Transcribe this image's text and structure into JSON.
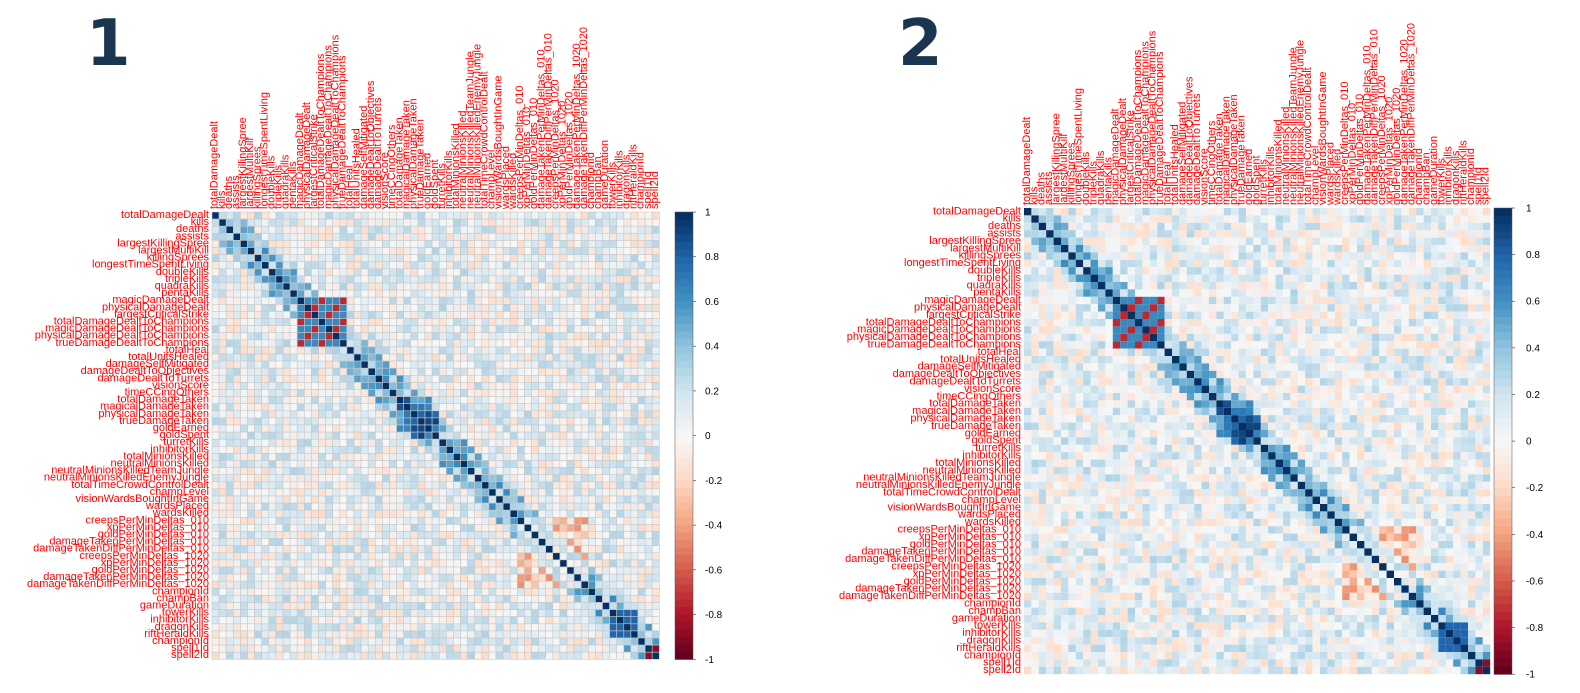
{
  "panels": [
    {
      "number": "1"
    },
    {
      "number": "2"
    }
  ],
  "chart_data": [
    {
      "type": "heatmap",
      "title": "",
      "style": "grid",
      "variables": [
        "totalDamageDealt",
        "kills",
        "deaths",
        "assists",
        "largestKillingSpree",
        "largestMultiKill",
        "killingSprees",
        "longestTimeSpentLiving",
        "doubleKills",
        "tripleKills",
        "quadraKills",
        "pentaKills",
        "magicDamageDealt",
        "physicalDamageDealt",
        "largestCriticalStrike",
        "totalDamageDealtToChampions",
        "magicDamageDealtToChampions",
        "physicalDamageDealtToChampions",
        "trueDamageDealtToChampions",
        "totalHeal",
        "totalUnitsHealed",
        "damageSelfMitigated",
        "damageDealtToObjectives",
        "damageDealtToTurrets",
        "visionScore",
        "timeCCingOthers",
        "totalDamageTaken",
        "magicalDamageTaken",
        "physicalDamageTaken",
        "trueDamageTaken",
        "goldEarned",
        "goldSpent",
        "turretKills",
        "inhibitorKills",
        "totalMinionsKilled",
        "neutralMinionsKilled",
        "neutralMinionsKilledTeamJungle",
        "neutralMinionsKilledEnemyJungle",
        "totalTimeCrowdControlDealt",
        "champLevel",
        "visionWardsBoughtInGame",
        "wardsPlaced",
        "wardsKilled",
        "creepsPerMinDeltas_010",
        "xpPerMinDeltas_010",
        "goldPerMinDeltas_010",
        "damageTakenPerMinDeltas_010",
        "damageTakenDiffPerMinDeltas_010",
        "creepsPerMinDeltas_1020",
        "xpPerMinDeltas_1020",
        "goldPerMinDeltas_1020",
        "damageTakenPerMinDeltas_1020",
        "damageTakenDiffPerMinDeltas_1020",
        "championId",
        "champBan",
        "gameDuration",
        "towerKills",
        "inhibitorKills",
        "dragonKills",
        "riftHeraldKills",
        "championId",
        "spell1Id",
        "spell2Id"
      ],
      "colorbar": {
        "ticks": [
          "1",
          "0.8",
          "0.6",
          "0.4",
          "0.2",
          "0",
          "-0.2",
          "-0.4",
          "-0.6",
          "-0.8",
          "-1"
        ],
        "range": [
          -1,
          1
        ]
      },
      "colors": {
        "high": "#053061",
        "mid": "#f7f7f7",
        "low": "#67001f"
      }
    },
    {
      "type": "heatmap",
      "title": "",
      "style": "filled",
      "variables": [
        "totalDamageDealt",
        "kills",
        "deaths",
        "assists",
        "largestKillingSpree",
        "largestMultiKill",
        "killingSprees",
        "longestTimeSpentLiving",
        "doubleKills",
        "tripleKills",
        "quadraKills",
        "pentaKills",
        "magicDamageDealt",
        "physicalDamageDealt",
        "largestCriticalStrike",
        "totalDamageDealtToChampions",
        "magicDamageDealtToChampions",
        "physicalDamageDealtToChampions",
        "trueDamageDealtToChampions",
        "totalHeal",
        "totalUnitsHealed",
        "damageSelfMitigated",
        "damageDealtToObjectives",
        "damageDealtToTurrets",
        "visionScore",
        "timeCCingOthers",
        "totalDamageTaken",
        "magicalDamageTaken",
        "physicalDamageTaken",
        "trueDamageTaken",
        "goldEarned",
        "goldSpent",
        "turretKills",
        "inhibitorKills",
        "totalMinionsKilled",
        "neutralMinionsKilled",
        "neutralMinionsKilledTeamJungle",
        "neutralMinionsKilledEnemyJungle",
        "totalTimeCrowdControlDealt",
        "champLevel",
        "visionWardsBoughtInGame",
        "wardsPlaced",
        "wardsKilled",
        "creepsPerMinDeltas_010",
        "xpPerMinDeltas_010",
        "goldPerMinDeltas_010",
        "damageTakenPerMinDeltas_010",
        "damageTakenDiffPerMinDeltas_010",
        "creepsPerMinDeltas_1020",
        "xpPerMinDeltas_1020",
        "goldPerMinDeltas_1020",
        "damageTakenPerMinDeltas_1020",
        "damageTakenDiffPerMinDeltas_1020",
        "championId",
        "champBan",
        "gameDuration",
        "towerKills",
        "inhibitorKills",
        "dragonKills",
        "riftHeraldKills",
        "championId",
        "spell1Id",
        "spell2Id"
      ],
      "colorbar": {
        "ticks": [
          "1",
          "0.8",
          "0.6",
          "0.4",
          "0.2",
          "0",
          "-0.2",
          "-0.4",
          "-0.6",
          "-0.8",
          "-1"
        ],
        "range": [
          -1,
          1
        ]
      },
      "colors": {
        "high": "#053061",
        "mid": "#f7f7f7",
        "low": "#67001f"
      }
    }
  ]
}
